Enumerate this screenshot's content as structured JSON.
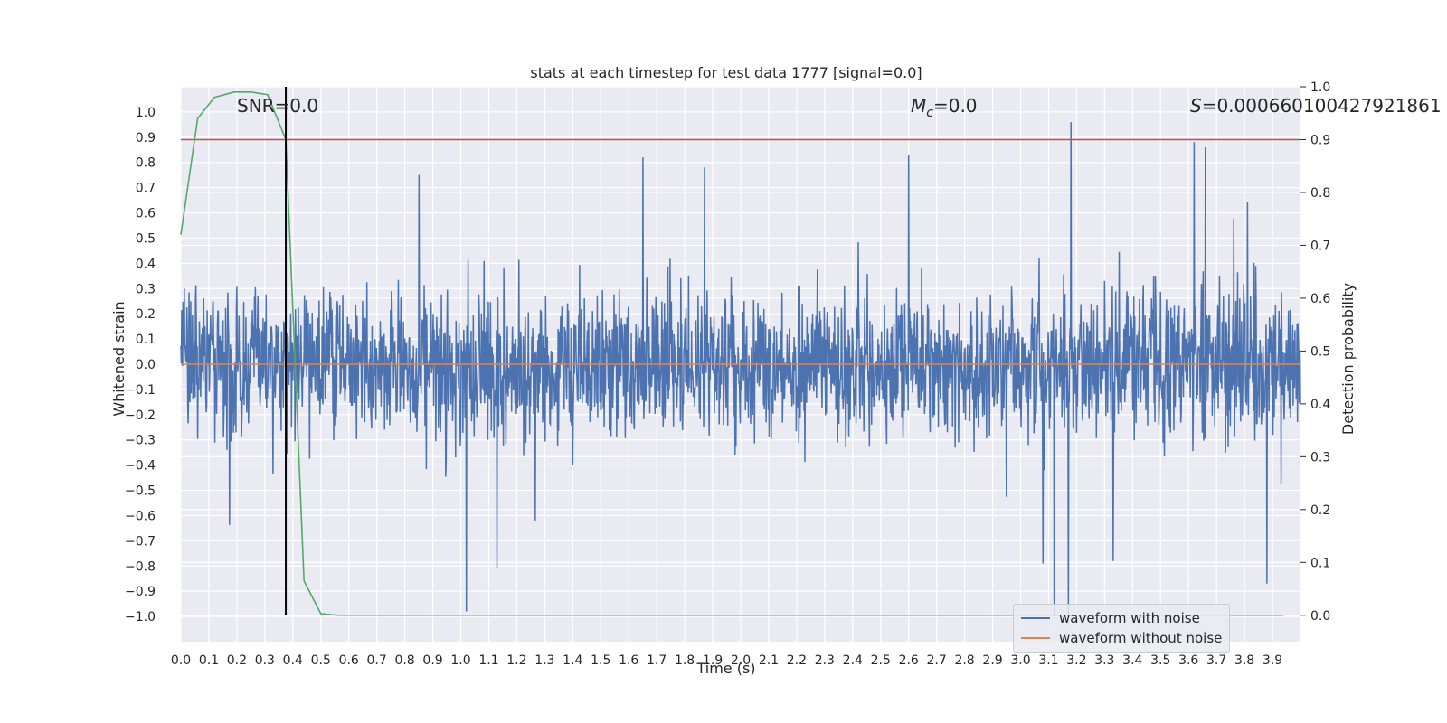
{
  "chart_data": {
    "type": "line",
    "title": "stats at each timestep for test data 1777 [signal=0.0]",
    "xlabel": "Time (s)",
    "ylabel_left": "Whitened strain",
    "ylabel_right": "Detection probability",
    "xlim": [
      0.0,
      4.0
    ],
    "ylim_left": [
      -1.1,
      1.1
    ],
    "ylim_right": [
      -0.05,
      1.0
    ],
    "grid": true,
    "legend_placement": "lower-right",
    "x_ticks": [
      "0.0",
      "0.1",
      "0.2",
      "0.3",
      "0.4",
      "0.5",
      "0.6",
      "0.7",
      "0.8",
      "0.9",
      "1.0",
      "1.1",
      "1.2",
      "1.3",
      "1.4",
      "1.5",
      "1.6",
      "1.7",
      "1.8",
      "1.9",
      "2.0",
      "2.1",
      "2.2",
      "2.3",
      "2.4",
      "2.5",
      "2.6",
      "2.7",
      "2.8",
      "2.9",
      "3.0",
      "3.1",
      "3.2",
      "3.3",
      "3.4",
      "3.5",
      "3.6",
      "3.7",
      "3.8",
      "3.9"
    ],
    "y_ticks_left": [
      "1.0",
      "0.9",
      "0.8",
      "0.7",
      "0.6",
      "0.5",
      "0.4",
      "0.3",
      "0.2",
      "0.1",
      "0.0",
      "-0.1",
      "-0.2",
      "-0.3",
      "-0.4",
      "-0.5",
      "-0.6",
      "-0.7",
      "-0.8",
      "-0.9",
      "-1.0"
    ],
    "y_ticks_right": [
      "1.0",
      "0.9",
      "0.8",
      "0.7",
      "0.6",
      "0.5",
      "0.4",
      "0.3",
      "0.2",
      "0.1",
      "0.0"
    ],
    "annotations": {
      "snr": "SNR=0.0",
      "mc_symbol": "M",
      "mc_sub": "c",
      "mc_value": "=0.0",
      "s_symbol": "S",
      "s_value": "=0.000660100427921861"
    },
    "series": [
      {
        "name": "waveform with noise",
        "color": "#4c72b0",
        "noise_envelope": {
          "typical_amplitude": 0.35,
          "peak_amplitude": 0.97
        },
        "peaks": [
          {
            "x": 1.65,
            "y": 0.82
          },
          {
            "x": 1.87,
            "y": 0.78
          },
          {
            "x": 2.6,
            "y": 0.83
          },
          {
            "x": 3.18,
            "y": 0.96
          },
          {
            "x": 3.62,
            "y": 0.88
          },
          {
            "x": 3.66,
            "y": 0.86
          },
          {
            "x": 0.85,
            "y": 0.75
          },
          {
            "x": 1.02,
            "y": -0.98
          },
          {
            "x": 1.13,
            "y": -0.81
          },
          {
            "x": 3.08,
            "y": -0.79
          },
          {
            "x": 3.17,
            "y": -1.0
          },
          {
            "x": 3.33,
            "y": -0.78
          },
          {
            "x": 3.88,
            "y": -0.87
          },
          {
            "x": 3.12,
            "y": -1.0
          }
        ]
      },
      {
        "name": "waveform without noise",
        "color": "#dd8452",
        "x": [
          0.0,
          4.0
        ],
        "y": [
          0.0,
          0.0
        ]
      },
      {
        "name": "detection probability",
        "color": "#55a868",
        "axis": "right",
        "x": [
          0.0,
          0.06,
          0.12,
          0.19,
          0.25,
          0.31,
          0.375,
          0.44,
          0.5,
          0.56,
          0.62,
          1.0,
          2.0,
          3.0,
          3.94
        ],
        "y": [
          0.72,
          0.94,
          0.98,
          0.99,
          0.99,
          0.985,
          0.9,
          0.065,
          0.003,
          0.0,
          0.0,
          0.0,
          0.0,
          0.0,
          0.0
        ]
      }
    ],
    "threshold": {
      "value": 0.9,
      "axis": "right",
      "color": "#c44e52"
    },
    "marker_line": {
      "x": 0.375,
      "y_from": 0.0,
      "y_to": 1.0,
      "axis": "right",
      "color": "#000000"
    },
    "legend": [
      {
        "label": "waveform with noise",
        "color": "#4c72b0"
      },
      {
        "label": "waveform without noise",
        "color": "#dd8452"
      }
    ]
  }
}
